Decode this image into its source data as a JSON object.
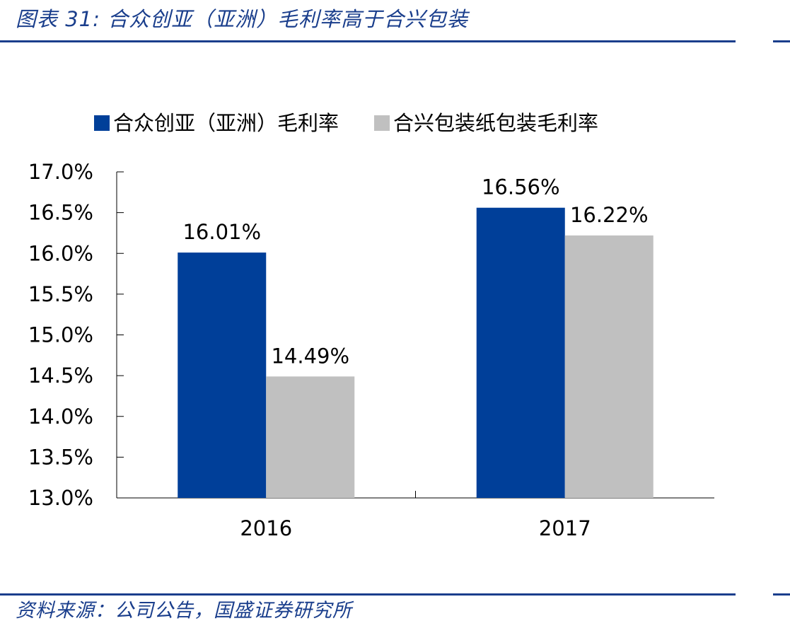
{
  "header": {
    "title": "图表 31:  合众创亚（亚洲）毛利率高于合兴包装"
  },
  "footer": {
    "source": "资料来源：公司公告，国盛证券研究所"
  },
  "colors": {
    "accent": "#1a3e8c",
    "series_1": "#003f99",
    "series_2": "#c0c0c0"
  },
  "chart_data": {
    "type": "bar",
    "title": "",
    "xlabel": "",
    "ylabel": "",
    "categories": [
      "2016",
      "2017"
    ],
    "series": [
      {
        "name": "合众创亚（亚洲）毛利率",
        "values": [
          16.01,
          16.56
        ],
        "labels": [
          "16.01%",
          "16.56%"
        ],
        "color": "#003f99"
      },
      {
        "name": "合兴包装纸包装毛利率",
        "values": [
          14.49,
          16.22
        ],
        "labels": [
          "14.49%",
          "16.22%"
        ],
        "color": "#c0c0c0"
      }
    ],
    "ylim": [
      13.0,
      17.0
    ],
    "yticks": [
      13.0,
      13.5,
      14.0,
      14.5,
      15.0,
      15.5,
      16.0,
      16.5,
      17.0
    ],
    "ytick_labels": [
      "13.0%",
      "13.5%",
      "14.0%",
      "14.5%",
      "15.0%",
      "15.5%",
      "16.0%",
      "16.5%",
      "17.0%"
    ],
    "grid": false,
    "legend_position": "top-center"
  }
}
